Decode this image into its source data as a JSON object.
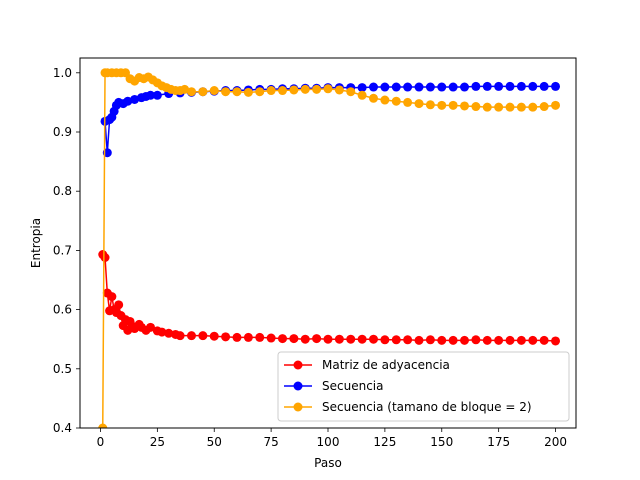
{
  "chart_data": {
    "type": "line",
    "title": "",
    "xlabel": "Paso",
    "ylabel": "Entropia",
    "xlim": [
      -9,
      209
    ],
    "ylim": [
      0.4,
      1.025
    ],
    "xticks": [
      0,
      25,
      50,
      75,
      100,
      125,
      150,
      175,
      200
    ],
    "yticks": [
      0.4,
      0.5,
      0.6,
      0.7,
      0.8,
      0.9,
      1.0
    ],
    "xtick_labels": [
      "0",
      "25",
      "50",
      "75",
      "100",
      "125",
      "150",
      "175",
      "200"
    ],
    "ytick_labels": [
      "0.4",
      "0.5",
      "0.6",
      "0.7",
      "0.8",
      "0.9",
      "1.0"
    ],
    "grid": false,
    "legend_position": "lower-right",
    "series": [
      {
        "name": "Matriz de adyacencia",
        "color": "#ff0000",
        "marker": "circle",
        "points": [
          [
            1,
            0.693
          ],
          [
            2,
            0.688
          ],
          [
            3,
            0.628
          ],
          [
            4,
            0.598
          ],
          [
            5,
            0.622
          ],
          [
            6,
            0.6
          ],
          [
            7,
            0.595
          ],
          [
            8,
            0.608
          ],
          [
            9,
            0.59
          ],
          [
            10,
            0.573
          ],
          [
            11,
            0.583
          ],
          [
            12,
            0.565
          ],
          [
            13,
            0.58
          ],
          [
            14,
            0.572
          ],
          [
            15,
            0.568
          ],
          [
            17,
            0.575
          ],
          [
            18,
            0.57
          ],
          [
            20,
            0.565
          ],
          [
            22,
            0.57
          ],
          [
            25,
            0.564
          ],
          [
            27,
            0.562
          ],
          [
            30,
            0.56
          ],
          [
            33,
            0.558
          ],
          [
            35,
            0.556
          ],
          [
            40,
            0.556
          ],
          [
            45,
            0.556
          ],
          [
            50,
            0.555
          ],
          [
            55,
            0.554
          ],
          [
            60,
            0.553
          ],
          [
            65,
            0.553
          ],
          [
            70,
            0.553
          ],
          [
            75,
            0.552
          ],
          [
            80,
            0.551
          ],
          [
            85,
            0.551
          ],
          [
            90,
            0.55
          ],
          [
            95,
            0.551
          ],
          [
            100,
            0.55
          ],
          [
            105,
            0.55
          ],
          [
            110,
            0.55
          ],
          [
            115,
            0.55
          ],
          [
            120,
            0.55
          ],
          [
            125,
            0.549
          ],
          [
            130,
            0.549
          ],
          [
            135,
            0.549
          ],
          [
            140,
            0.548
          ],
          [
            145,
            0.549
          ],
          [
            150,
            0.548
          ],
          [
            155,
            0.548
          ],
          [
            160,
            0.548
          ],
          [
            165,
            0.549
          ],
          [
            170,
            0.548
          ],
          [
            175,
            0.548
          ],
          [
            180,
            0.548
          ],
          [
            185,
            0.548
          ],
          [
            190,
            0.548
          ],
          [
            195,
            0.548
          ],
          [
            200,
            0.547
          ]
        ]
      },
      {
        "name": "Secuencia",
        "color": "#0000ff",
        "marker": "circle",
        "points": [
          [
            2,
            0.918
          ],
          [
            3,
            0.865
          ],
          [
            4,
            0.921
          ],
          [
            5,
            0.925
          ],
          [
            6,
            0.935
          ],
          [
            7,
            0.945
          ],
          [
            8,
            0.95
          ],
          [
            10,
            0.948
          ],
          [
            12,
            0.952
          ],
          [
            15,
            0.955
          ],
          [
            18,
            0.958
          ],
          [
            20,
            0.96
          ],
          [
            22,
            0.962
          ],
          [
            25,
            0.962
          ],
          [
            30,
            0.965
          ],
          [
            35,
            0.966
          ],
          [
            40,
            0.967
          ],
          [
            45,
            0.968
          ],
          [
            50,
            0.969
          ],
          [
            55,
            0.97
          ],
          [
            60,
            0.97
          ],
          [
            65,
            0.971
          ],
          [
            70,
            0.972
          ],
          [
            75,
            0.972
          ],
          [
            80,
            0.973
          ],
          [
            85,
            0.973
          ],
          [
            90,
            0.974
          ],
          [
            95,
            0.974
          ],
          [
            100,
            0.975
          ],
          [
            105,
            0.975
          ],
          [
            110,
            0.975
          ],
          [
            115,
            0.975
          ],
          [
            120,
            0.976
          ],
          [
            125,
            0.976
          ],
          [
            130,
            0.976
          ],
          [
            135,
            0.976
          ],
          [
            140,
            0.976
          ],
          [
            145,
            0.976
          ],
          [
            150,
            0.976
          ],
          [
            155,
            0.976
          ],
          [
            160,
            0.976
          ],
          [
            165,
            0.977
          ],
          [
            170,
            0.977
          ],
          [
            175,
            0.977
          ],
          [
            180,
            0.977
          ],
          [
            185,
            0.977
          ],
          [
            190,
            0.977
          ],
          [
            195,
            0.977
          ],
          [
            200,
            0.977
          ]
        ]
      },
      {
        "name": "Secuencia (tamano de bloque = 2)",
        "color": "#ffa500",
        "marker": "circle",
        "points": [
          [
            1,
            0.4
          ],
          [
            2,
            1.0
          ],
          [
            3,
            1.0
          ],
          [
            5,
            1.0
          ],
          [
            7,
            1.0
          ],
          [
            9,
            1.0
          ],
          [
            11,
            1.0
          ],
          [
            13,
            0.99
          ],
          [
            15,
            0.986
          ],
          [
            17,
            0.992
          ],
          [
            19,
            0.99
          ],
          [
            21,
            0.993
          ],
          [
            23,
            0.988
          ],
          [
            25,
            0.983
          ],
          [
            27,
            0.978
          ],
          [
            29,
            0.975
          ],
          [
            31,
            0.972
          ],
          [
            33,
            0.97
          ],
          [
            35,
            0.97
          ],
          [
            37,
            0.972
          ],
          [
            40,
            0.968
          ],
          [
            45,
            0.968
          ],
          [
            50,
            0.97
          ],
          [
            55,
            0.968
          ],
          [
            60,
            0.968
          ],
          [
            65,
            0.967
          ],
          [
            70,
            0.968
          ],
          [
            75,
            0.97
          ],
          [
            80,
            0.97
          ],
          [
            85,
            0.971
          ],
          [
            90,
            0.972
          ],
          [
            95,
            0.972
          ],
          [
            100,
            0.973
          ],
          [
            105,
            0.971
          ],
          [
            110,
            0.968
          ],
          [
            115,
            0.962
          ],
          [
            120,
            0.957
          ],
          [
            125,
            0.954
          ],
          [
            130,
            0.952
          ],
          [
            135,
            0.95
          ],
          [
            140,
            0.948
          ],
          [
            145,
            0.946
          ],
          [
            150,
            0.945
          ],
          [
            155,
            0.945
          ],
          [
            160,
            0.944
          ],
          [
            165,
            0.943
          ],
          [
            170,
            0.942
          ],
          [
            175,
            0.942
          ],
          [
            180,
            0.942
          ],
          [
            185,
            0.942
          ],
          [
            190,
            0.942
          ],
          [
            195,
            0.943
          ],
          [
            200,
            0.945
          ]
        ]
      }
    ]
  }
}
